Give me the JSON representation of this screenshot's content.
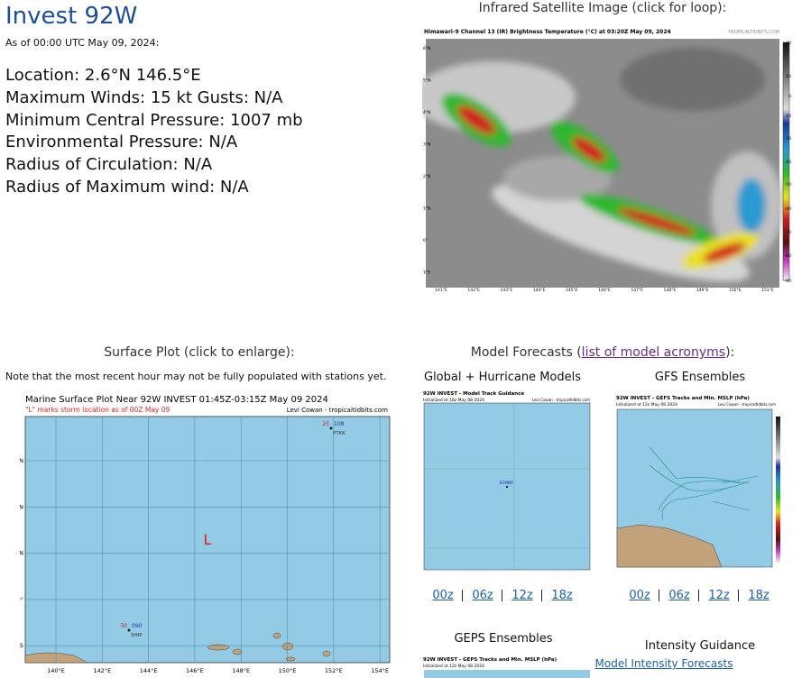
{
  "header": {
    "title": "Invest 92W",
    "as_of": "As of 00:00 UTC May 09, 2024:"
  },
  "info": [
    "Location: 2.6°N 146.5°E",
    "Maximum Winds: 15 kt  Gusts: N/A",
    "Minimum Central Pressure: 1007 mb",
    "Environmental Pressure: N/A",
    "Radius of Circulation: N/A",
    "Radius of Maximum wind: N/A"
  ],
  "satellite": {
    "heading": "Infrared Satellite Image (click for loop):",
    "image_title": "Himawari-9 Channel 13 (IR) Brightness Temperature (°C) at 03:20Z May 09, 2024",
    "credit": "TROPICALTIDBITS.COM",
    "lat_labels": [
      "6°N",
      "5°N",
      "4°N",
      "3°N",
      "2°N",
      "1°N",
      "0°",
      "1°S"
    ],
    "lon_labels": [
      "141°E",
      "142°E",
      "143°E",
      "144°E",
      "145°E",
      "146°E",
      "147°E",
      "148°E",
      "149°E",
      "150°E",
      "151°E"
    ],
    "colorbar_labels": [
      "40",
      "20",
      "0",
      "-20",
      "-30",
      "-40",
      "-50",
      "-60",
      "-70",
      "-80",
      "-90"
    ]
  },
  "surface": {
    "heading": "Surface Plot (click to enlarge):",
    "note": "Note that the most recent hour may not be fully populated with stations yet.",
    "plot_title": "Marine Surface Plot Near 92W INVEST 01:45Z-03:15Z May 09 2024",
    "plot_subtitle": "\"L\" marks storm location as of 00Z May 09",
    "credit": "Levi Cowan - tropicaltidbits.com",
    "lat_labels": [
      "6°N",
      "4°N",
      "2°N",
      "0°",
      "2°S"
    ],
    "lon_labels": [
      "140°E",
      "142°E",
      "144°E",
      "146°E",
      "148°E",
      "150°E",
      "152°E",
      "154°E"
    ],
    "storm_marker": "L",
    "stations": [
      {
        "temp": "25",
        "pressure": "108",
        "id": "PTKK"
      },
      {
        "temp": "30",
        "pressure": "090",
        "id": "SHIP"
      }
    ]
  },
  "models": {
    "heading": "Model Forecasts (",
    "acronyms_link": "list of model acronyms",
    "heading_end": "):",
    "global": {
      "heading": "Global + Hurricane Models",
      "image_title": "92W INVEST - Model Track Guidance",
      "initialized": "Initialized at 18z May 08 2024",
      "credit": "Levi Cowan - tropicaltidbits.com",
      "model_label": "ECMWF",
      "links": [
        "00z",
        "06z",
        "12z",
        "18z"
      ]
    },
    "gfs": {
      "heading": "GFS Ensembles",
      "image_title": "92W INVEST - GEFS Tracks and Min. MSLP (hPa)",
      "initialized": "Initialized at 12z May 08 2024",
      "credit": "Levi Cowan - tropicaltidbits.com",
      "links": [
        "00z",
        "06z",
        "12z",
        "18z"
      ]
    },
    "geps": {
      "heading": "GEPS Ensembles",
      "image_title": "92W INVEST - GEPS Tracks and Min. MSLP (hPa)",
      "initialized": "Initialized at 12z May 08 2024"
    },
    "intensity": {
      "heading": "Intensity Guidance",
      "link": "Model Intensity Forecasts"
    }
  }
}
